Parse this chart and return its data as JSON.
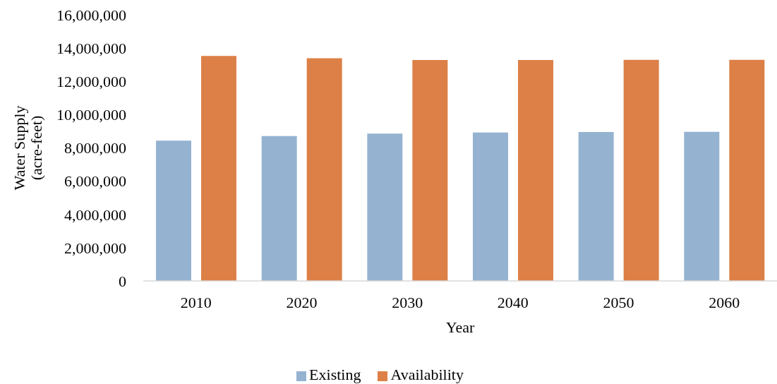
{
  "chart_data": {
    "type": "bar",
    "xlabel": "Year",
    "ylabel": "Water Supply (acre-feet)",
    "categories": [
      "2010",
      "2020",
      "2030",
      "2040",
      "2050",
      "2060"
    ],
    "series": [
      {
        "name": "Existing",
        "color": "#95b3d1",
        "values": [
          8430000,
          8710000,
          8860000,
          8920000,
          8960000,
          8970000
        ]
      },
      {
        "name": "Availability",
        "color": "#dd8047",
        "values": [
          13530000,
          13390000,
          13280000,
          13280000,
          13290000,
          13290000
        ]
      }
    ],
    "ylim": [
      0,
      16000000
    ],
    "yticks": [
      {
        "value": 0,
        "label": "0"
      },
      {
        "value": 2000000,
        "label": "2,000,000"
      },
      {
        "value": 4000000,
        "label": "4,000,000"
      },
      {
        "value": 6000000,
        "label": "6,000,000"
      },
      {
        "value": 8000000,
        "label": "8,000,000"
      },
      {
        "value": 10000000,
        "label": "10,000,000"
      },
      {
        "value": 12000000,
        "label": "12,000,000"
      },
      {
        "value": 14000000,
        "label": "14,000,000"
      },
      {
        "value": 16000000,
        "label": "16,000,000"
      }
    ],
    "legend": "bottom"
  }
}
